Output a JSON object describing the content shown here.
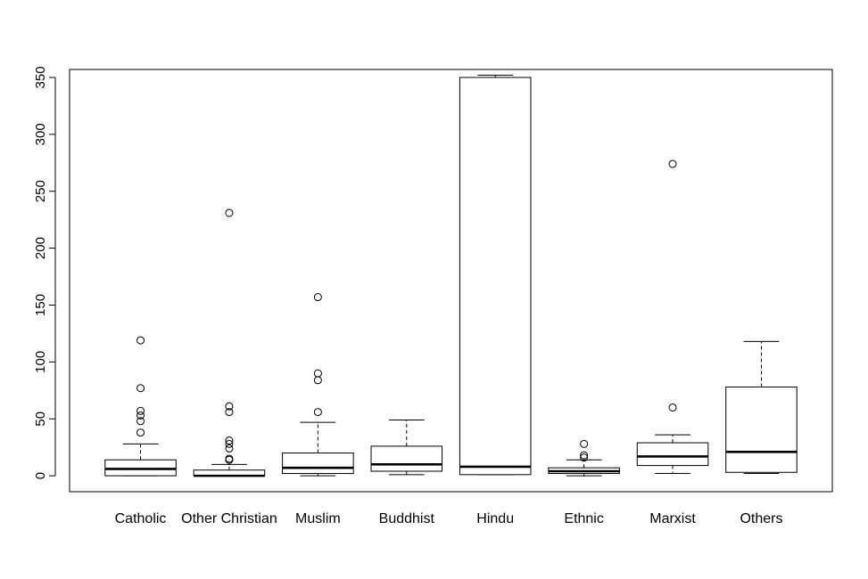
{
  "chart_data": {
    "type": "boxplot",
    "title": "",
    "xlabel": "",
    "ylabel": "",
    "ylim": [
      -14,
      357
    ],
    "yticks": [
      0,
      50,
      100,
      150,
      200,
      250,
      300,
      350
    ],
    "categories": [
      "Catholic",
      "Other Christian",
      "Muslim",
      "Buddhist",
      "Hindu",
      "Ethnic",
      "Marxist",
      "Others"
    ],
    "boxes": [
      {
        "category": "Catholic",
        "whisker_low": 0,
        "q1": 0,
        "median": 6,
        "q3": 14,
        "whisker_high": 28,
        "outliers": [
          38,
          48,
          53,
          57,
          77,
          119
        ]
      },
      {
        "category": "Other Christian",
        "whisker_low": 0,
        "q1": 0,
        "median": 0,
        "q3": 5,
        "whisker_high": 10,
        "outliers": [
          14,
          15,
          24,
          28,
          31,
          56,
          61,
          231
        ]
      },
      {
        "category": "Muslim",
        "whisker_low": 0,
        "q1": 2,
        "median": 7,
        "q3": 20,
        "whisker_high": 47,
        "outliers": [
          56,
          84,
          90,
          157
        ]
      },
      {
        "category": "Buddhist",
        "whisker_low": 1,
        "q1": 4,
        "median": 10,
        "q3": 26,
        "whisker_high": 49,
        "outliers": []
      },
      {
        "category": "Hindu",
        "whisker_low": 1,
        "q1": 1,
        "median": 8,
        "q3": 350,
        "whisker_high": 352,
        "outliers": []
      },
      {
        "category": "Ethnic",
        "whisker_low": 0,
        "q1": 2,
        "median": 4,
        "q3": 7,
        "whisker_high": 14,
        "outliers": [
          16,
          18,
          28
        ]
      },
      {
        "category": "Marxist",
        "whisker_low": 2,
        "q1": 9,
        "median": 17,
        "q3": 29,
        "whisker_high": 36,
        "outliers": [
          60,
          274
        ]
      },
      {
        "category": "Others",
        "whisker_low": 2,
        "q1": 3,
        "median": 21,
        "q3": 78,
        "whisker_high": 118,
        "outliers": []
      }
    ],
    "grid": false,
    "legend": "none"
  }
}
